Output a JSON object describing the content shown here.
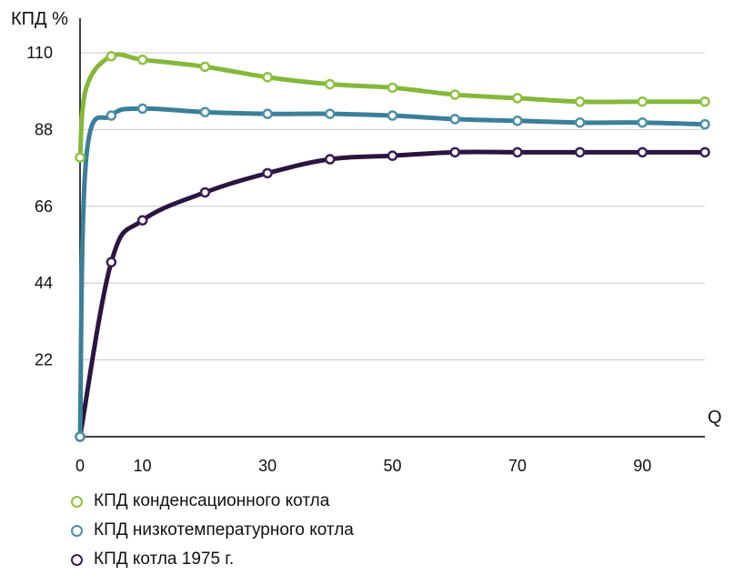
{
  "chart_data": {
    "type": "line",
    "title": "",
    "ylabel": "КПД %",
    "xlabel": "Q",
    "xlim": [
      0,
      100
    ],
    "ylim": [
      0,
      110
    ],
    "x_ticks": [
      0,
      10,
      30,
      50,
      70,
      90
    ],
    "y_ticks": [
      22,
      44,
      66,
      88,
      110
    ],
    "grid": "horizontal",
    "legend_position": "bottom-left",
    "series": [
      {
        "name": "КПД конденсационного котла",
        "color": "#85b83a",
        "marker_color": "#8fc240",
        "x": [
          0,
          1,
          5,
          10,
          20,
          30,
          40,
          50,
          60,
          70,
          80,
          90,
          100
        ],
        "y": [
          80,
          100,
          109,
          108,
          106,
          103,
          101,
          100,
          98,
          97,
          96,
          96,
          96
        ]
      },
      {
        "name": "КПД низкотемпературного котла",
        "color": "#3b7f99",
        "marker_color": "#4d8fa8",
        "x": [
          0,
          1,
          5,
          10,
          20,
          30,
          40,
          50,
          60,
          70,
          80,
          90,
          100
        ],
        "y": [
          0,
          80,
          92,
          94,
          93,
          92.5,
          92.5,
          92,
          91,
          90.5,
          90,
          90,
          89.5
        ]
      },
      {
        "name": "КПД котла 1975 г.",
        "color": "#2b1540",
        "marker_color": "#3a1f55",
        "x": [
          0,
          5,
          10,
          20,
          30,
          40,
          50,
          60,
          70,
          80,
          90,
          100
        ],
        "y": [
          0,
          50,
          62,
          70,
          75.5,
          79.5,
          80.5,
          81.5,
          81.5,
          81.5,
          81.5,
          81.5
        ]
      }
    ]
  }
}
